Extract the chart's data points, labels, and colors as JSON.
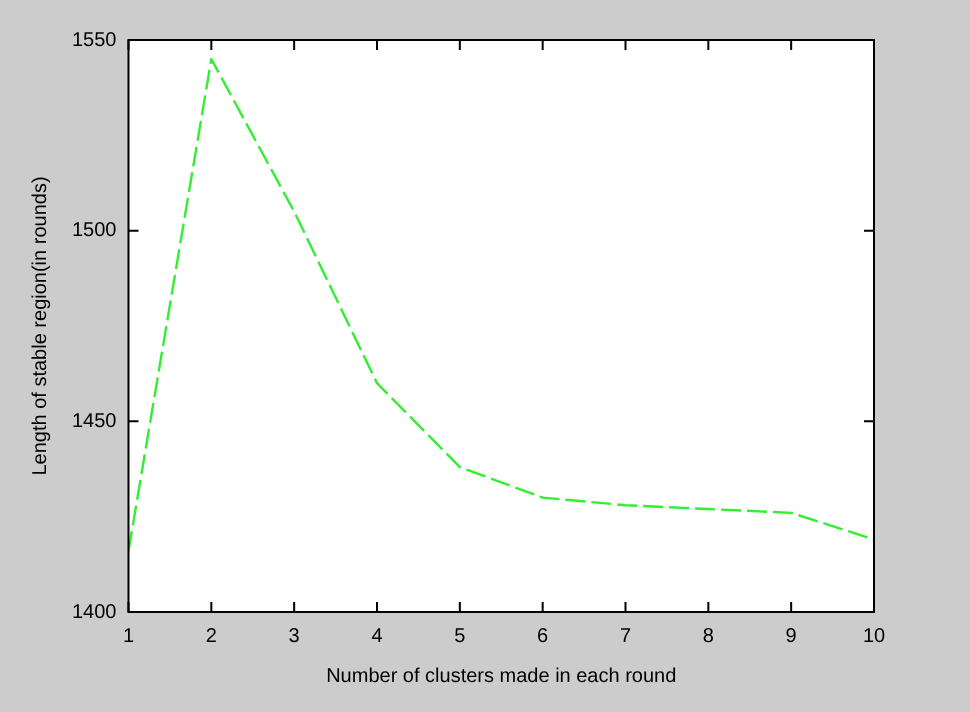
{
  "chart_data": {
    "type": "line",
    "xlabel": "Number of clusters made in each round",
    "ylabel": "Length of stable region(in rounds)",
    "x": [
      1,
      2,
      3,
      4,
      5,
      6,
      7,
      8,
      9,
      10
    ],
    "series": [
      {
        "color": "#33ee33",
        "values": [
          1416,
          1545,
          1505,
          1460,
          1438,
          1430,
          1428,
          1427,
          1426,
          1419
        ]
      }
    ],
    "xlim": [
      1,
      10
    ],
    "xticks": [
      1,
      2,
      3,
      4,
      5,
      6,
      7,
      8,
      9,
      10
    ],
    "ylim": [
      1400,
      1550
    ],
    "yticks": [
      1400,
      1450,
      1500,
      1550
    ],
    "grid": false,
    "legend": false,
    "marker": "none",
    "line_style": "dashed"
  }
}
